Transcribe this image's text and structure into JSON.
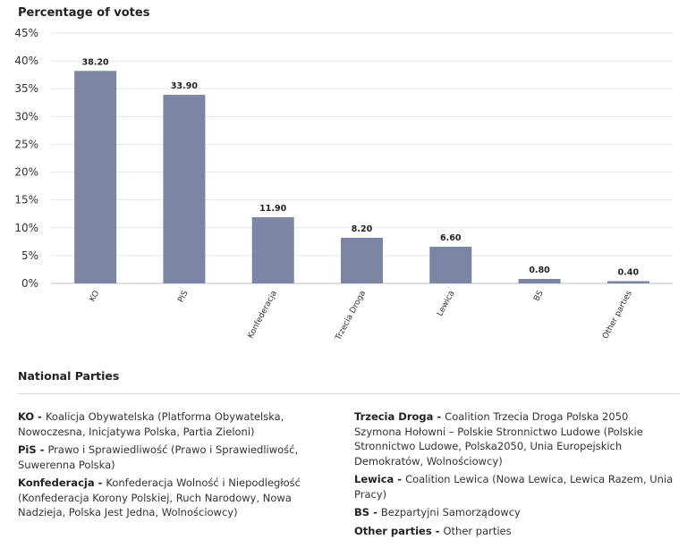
{
  "chart_data": {
    "type": "bar",
    "title": "Percentage of votes",
    "categories": [
      "KO",
      "PiS",
      "Konfederacja",
      "Trzecia Droga",
      "Lewica",
      "BS",
      "Other parties"
    ],
    "values": [
      38.2,
      33.9,
      11.9,
      8.2,
      6.6,
      0.8,
      0.4
    ],
    "value_labels": [
      "38.20",
      "33.90",
      "11.90",
      "8.20",
      "6.60",
      "0.80",
      "0.40"
    ],
    "yticks": [
      "0%",
      "5%",
      "10%",
      "15%",
      "20%",
      "25%",
      "30%",
      "35%",
      "40%",
      "45%"
    ],
    "ylim": [
      0,
      45
    ],
    "grid": true,
    "bar_color": "#7c86a4"
  },
  "legend": {
    "title": "National Parties",
    "separator": " - ",
    "left": [
      {
        "abbr": "KO",
        "desc": "Koalicja Obywatelska (Platforma Obywatelska, Nowoczesna, Inicjatywa Polska, Partia Zieloni)"
      },
      {
        "abbr": "PiS",
        "desc": "Prawo i Sprawiedliwość (Prawo i Sprawiedliwość, Suwerenna Polska)"
      },
      {
        "abbr": "Konfederacja",
        "desc": "Konfederacja Wolność i Niepodległość (Konfederacja Korony Polskiej, Ruch Narodowy, Nowa Nadzieja, Polska Jest Jedna, Wolnościowcy)"
      }
    ],
    "right": [
      {
        "abbr": "Trzecia Droga",
        "desc": "Coalition Trzecia Droga Polska 2050 Szymona Hołowni – Polskie Stronnictwo Ludowe (Polskie Stronnictwo Ludowe, Polska2050, Unia Europejskich Demokratów, Wolnościowcy)"
      },
      {
        "abbr": "Lewica",
        "desc": "Coalition Lewica (Nowa Lewica, Lewica Razem, Unia Pracy)"
      },
      {
        "abbr": "BS",
        "desc": "Bezpartyjni Samorządowcy"
      },
      {
        "abbr": "Other parties",
        "desc": "Other parties"
      }
    ]
  }
}
